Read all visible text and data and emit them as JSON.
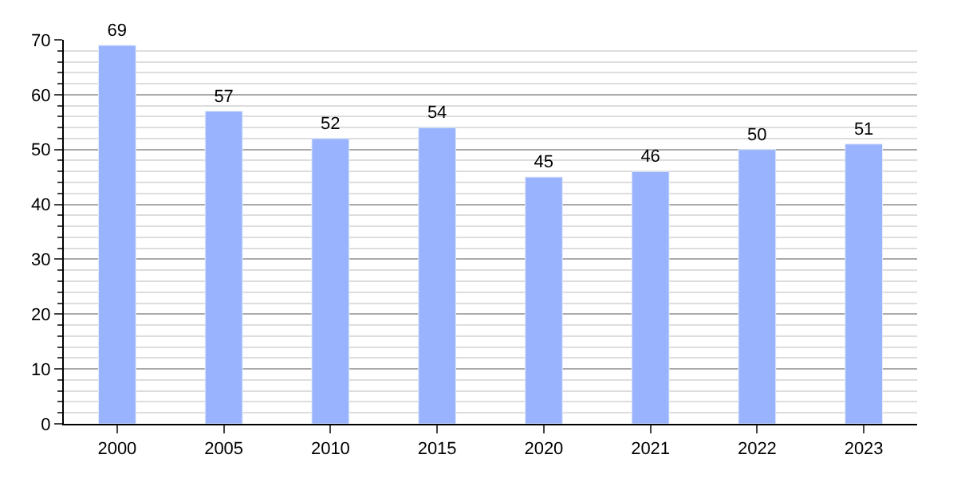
{
  "chart_data": {
    "type": "bar",
    "categories": [
      "2000",
      "2005",
      "2010",
      "2015",
      "2020",
      "2021",
      "2022",
      "2023"
    ],
    "values": [
      69,
      57,
      52,
      54,
      45,
      46,
      50,
      51
    ],
    "color": "#99b3ff",
    "ylim": [
      0,
      70
    ],
    "yticks": [
      0,
      10,
      20,
      30,
      40,
      50,
      60,
      70
    ],
    "grid": "y",
    "data_labels": true
  }
}
